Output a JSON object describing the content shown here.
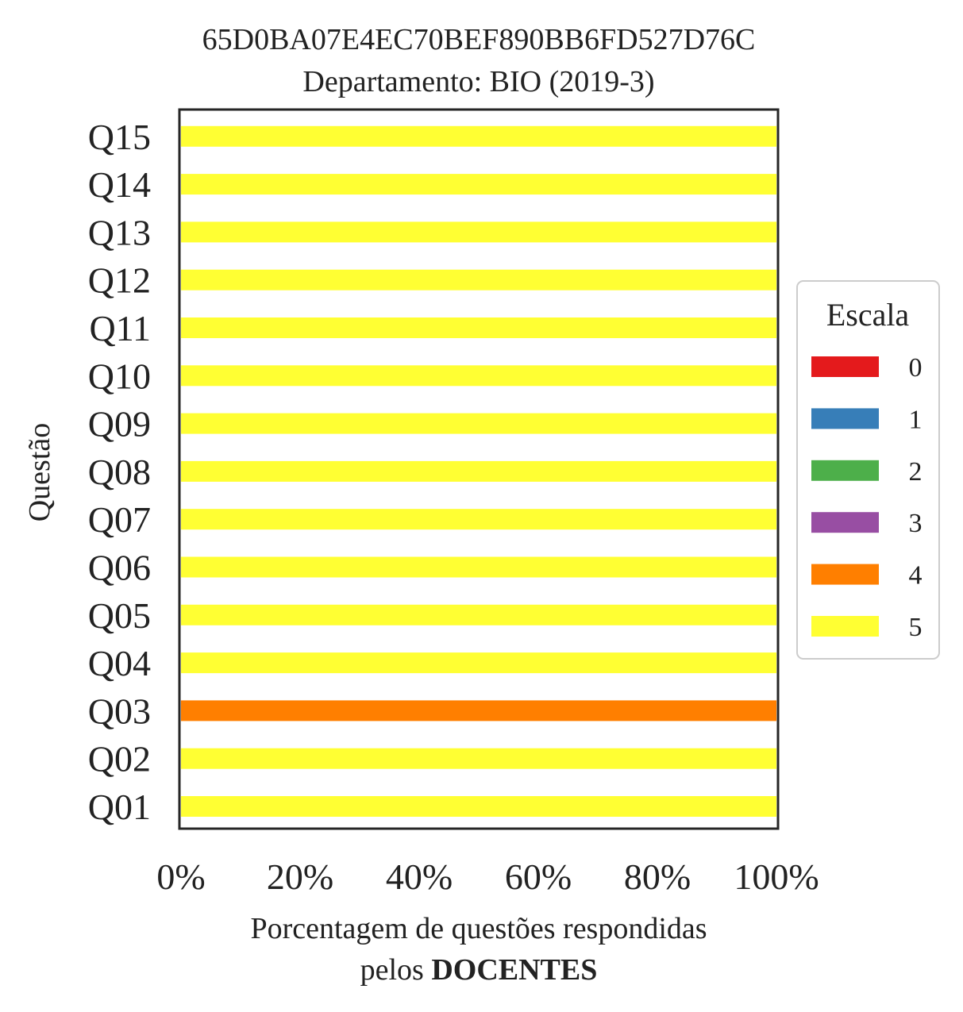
{
  "chart_data": {
    "type": "bar",
    "orientation": "horizontal",
    "stacked": true,
    "title_line1": "65D0BA07E4EC70BEF890BB6FD527D76C",
    "title_line2": "Departamento: BIO (2019-3)",
    "ylabel": "Questão",
    "xlabel_line1": "Porcentagem de questões respondidas",
    "xlabel_line2_prefix": "pelos ",
    "xlabel_line2_bold": "DOCENTES",
    "xlim": [
      0,
      100
    ],
    "xticks": [
      0,
      20,
      40,
      60,
      80,
      100
    ],
    "xtick_labels": [
      "0%",
      "20%",
      "40%",
      "60%",
      "80%",
      "100%"
    ],
    "categories": [
      "Q01",
      "Q02",
      "Q03",
      "Q04",
      "Q05",
      "Q06",
      "Q07",
      "Q08",
      "Q09",
      "Q10",
      "Q11",
      "Q12",
      "Q13",
      "Q14",
      "Q15"
    ],
    "legend": {
      "title": "Escala",
      "placement": "center-right, outside"
    },
    "series": [
      {
        "name": "0",
        "color": "#e41a1c",
        "values": [
          0,
          0,
          0,
          0,
          0,
          0,
          0,
          0,
          0,
          0,
          0,
          0,
          0,
          0,
          0
        ]
      },
      {
        "name": "1",
        "color": "#377eb8",
        "values": [
          0,
          0,
          0,
          0,
          0,
          0,
          0,
          0,
          0,
          0,
          0,
          0,
          0,
          0,
          0
        ]
      },
      {
        "name": "2",
        "color": "#4daf4a",
        "values": [
          0,
          0,
          0,
          0,
          0,
          0,
          0,
          0,
          0,
          0,
          0,
          0,
          0,
          0,
          0
        ]
      },
      {
        "name": "3",
        "color": "#984ea3",
        "values": [
          0,
          0,
          0,
          0,
          0,
          0,
          0,
          0,
          0,
          0,
          0,
          0,
          0,
          0,
          0
        ]
      },
      {
        "name": "4",
        "color": "#ff7f00",
        "values": [
          0,
          0,
          100,
          0,
          0,
          0,
          0,
          0,
          0,
          0,
          0,
          0,
          0,
          0,
          0
        ]
      },
      {
        "name": "5",
        "color": "#ffff33",
        "values": [
          100,
          100,
          0,
          100,
          100,
          100,
          100,
          100,
          100,
          100,
          100,
          100,
          100,
          100,
          100
        ]
      }
    ],
    "grid": false
  }
}
